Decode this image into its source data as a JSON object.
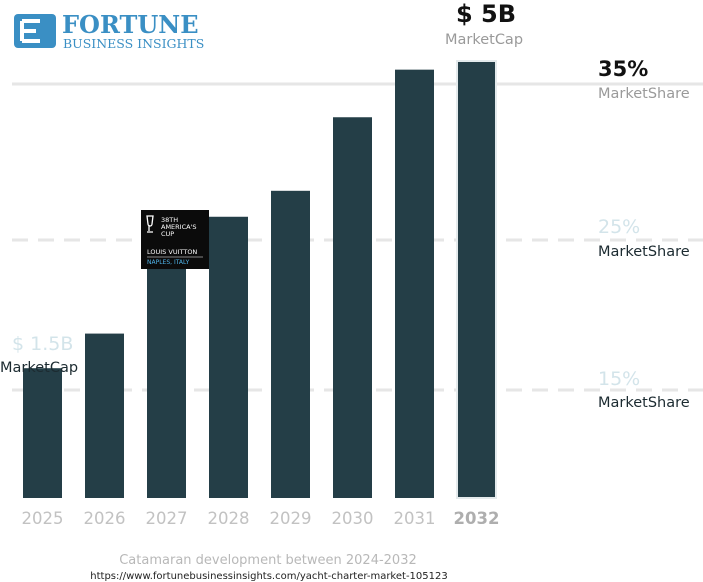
{
  "logo": {
    "brand_top": "FORTUNE",
    "brand_bottom": "BUSINESS INSIGHTS",
    "brand_color": "#3a8fc4"
  },
  "badge": {
    "line1": "38TH",
    "line2": "AMERICA'S",
    "line3": "CUP",
    "line4": "LOUIS VUITTON",
    "line5": "NAPLES, ITALY"
  },
  "chart_data": {
    "type": "bar",
    "categories": [
      "2025",
      "2026",
      "2027",
      "2028",
      "2029",
      "2030",
      "2031",
      "2032"
    ],
    "values": [
      1.5,
      1.9,
      2.95,
      3.25,
      3.55,
      4.4,
      4.95,
      5.05
    ],
    "ylim": [
      0,
      5.05
    ],
    "bar_color": "#243e47",
    "highlight_category": "2032",
    "grid": true,
    "annotations": {
      "start": {
        "value": "$ 1.5B",
        "label": "MarketCap"
      },
      "end": {
        "value": "$ 5B",
        "label": "MarketCap"
      }
    },
    "share_markers": [
      {
        "value": "35%",
        "label": "MarketShare",
        "emphasis": true
      },
      {
        "value": "25%",
        "label": "MarketShare",
        "emphasis": false
      },
      {
        "value": "15%",
        "label": "MarketShare",
        "emphasis": false
      }
    ]
  },
  "caption": {
    "title": "Catamaran development between 2024-2032",
    "url": "https://www.fortunebusinessinsights.com/yacht-charter-market-105123"
  }
}
